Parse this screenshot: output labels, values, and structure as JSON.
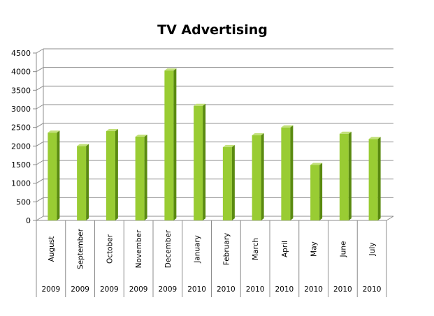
{
  "chart_data": {
    "type": "bar",
    "title": "TV Advertising",
    "xlabel": "",
    "ylabel": "",
    "ylim": [
      0,
      4500
    ],
    "yticks": [
      0,
      500,
      1000,
      1500,
      2000,
      2500,
      3000,
      3500,
      4000,
      4500
    ],
    "grid": true,
    "legend": "none",
    "categories": [
      "August",
      "September",
      "October",
      "November",
      "December",
      "January",
      "February",
      "March",
      "April",
      "May",
      "June",
      "July"
    ],
    "years": [
      "2009",
      "2009",
      "2009",
      "2009",
      "2009",
      "2010",
      "2010",
      "2010",
      "2010",
      "2010",
      "2010",
      "2010"
    ],
    "values": [
      2360,
      2000,
      2400,
      2250,
      4030,
      3080,
      1970,
      2290,
      2500,
      1490,
      2330,
      2190
    ],
    "bar_color": "#99cc33",
    "bar_side_color": "#5a8a10",
    "bar_top_color": "#c2e07a"
  }
}
